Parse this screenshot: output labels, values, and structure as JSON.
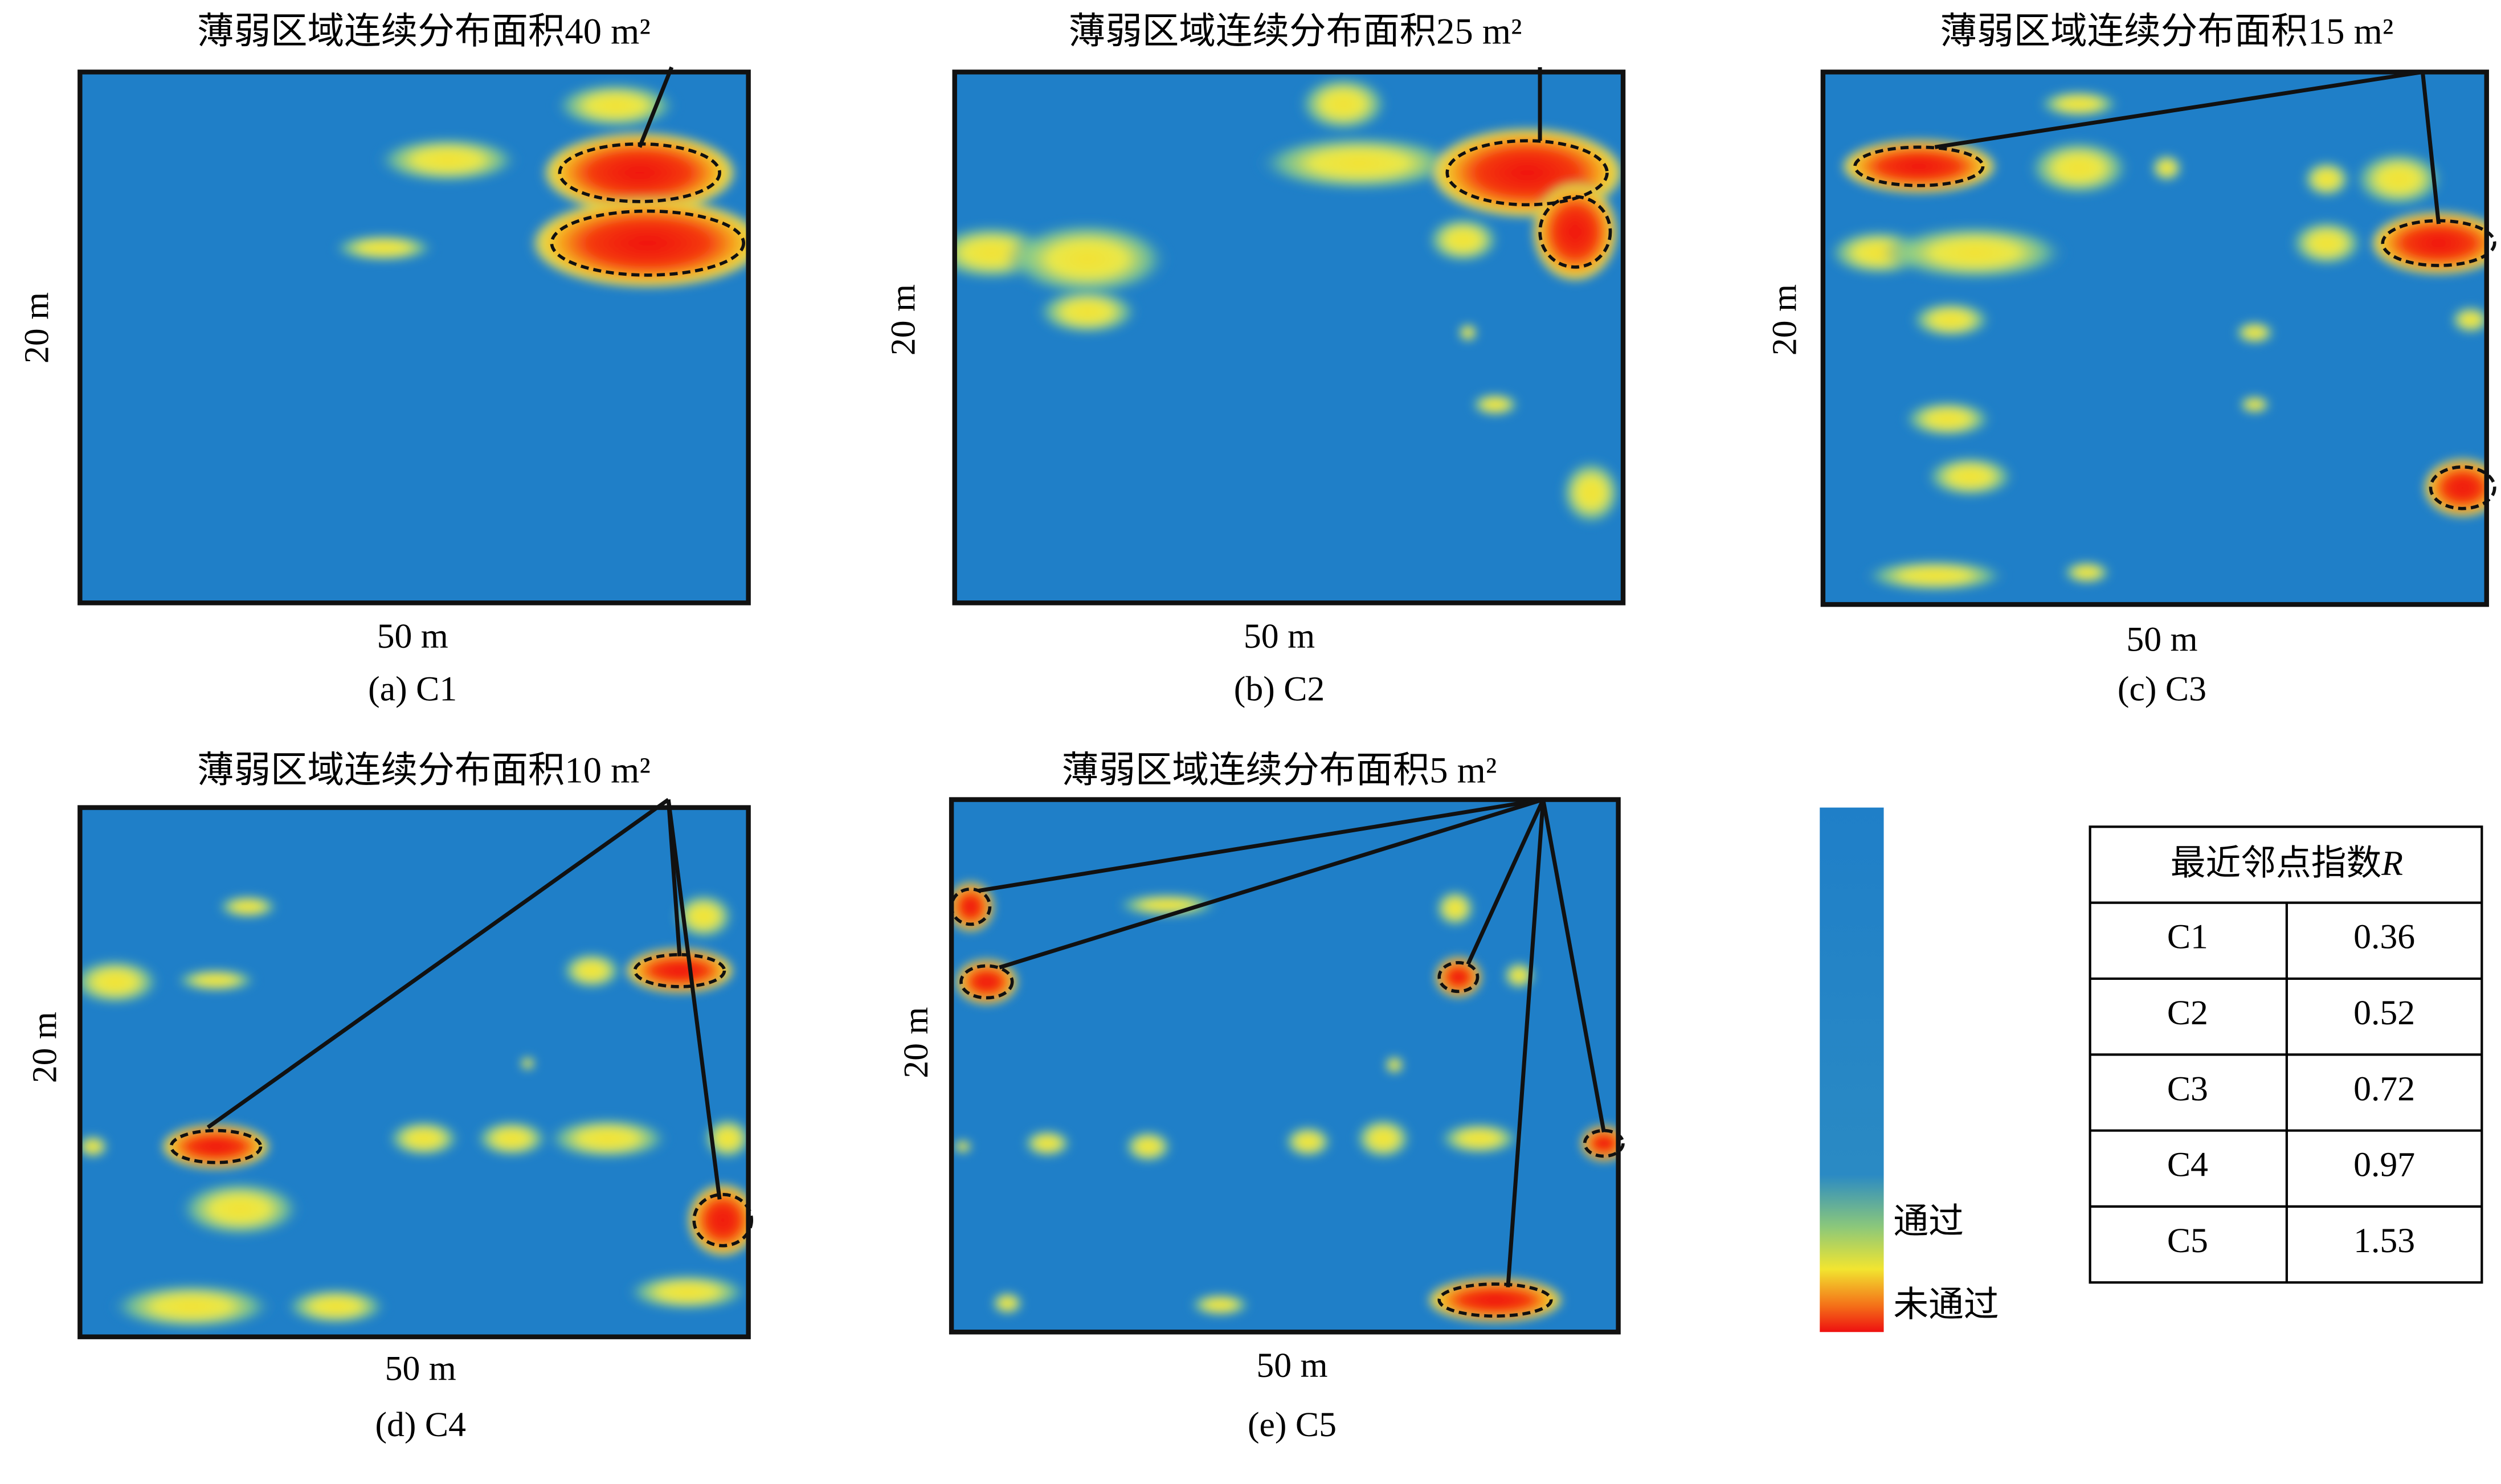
{
  "panels": [
    {
      "title": "薄弱区域连续分布面积40 m²",
      "x_label": "50 m",
      "y_label": "20 m",
      "caption": "(a) C1"
    },
    {
      "title": "薄弱区域连续分布面积25 m²",
      "x_label": "50 m",
      "y_label": "20 m",
      "caption": "(b) C2"
    },
    {
      "title": "薄弱区域连续分布面积15 m²",
      "x_label": "50 m",
      "y_label": "20 m",
      "caption": "(c) C3"
    },
    {
      "title": "薄弱区域连续分布面积10 m²",
      "x_label": "50 m",
      "y_label": "20 m",
      "caption": "(d) C4"
    },
    {
      "title": "薄弱区域连续分布面积5 m²",
      "x_label": "50 m",
      "y_label": "20 m",
      "caption": "(e) C5"
    }
  ],
  "legend": {
    "pass": "通过",
    "fail": "未通过"
  },
  "table": {
    "header": [
      "最近邻点指数",
      "R"
    ],
    "rows": [
      [
        "C1",
        "0.36"
      ],
      [
        "C2",
        "0.52"
      ],
      [
        "C3",
        "0.72"
      ],
      [
        "C4",
        "0.97"
      ],
      [
        "C5",
        "1.53"
      ]
    ]
  }
}
